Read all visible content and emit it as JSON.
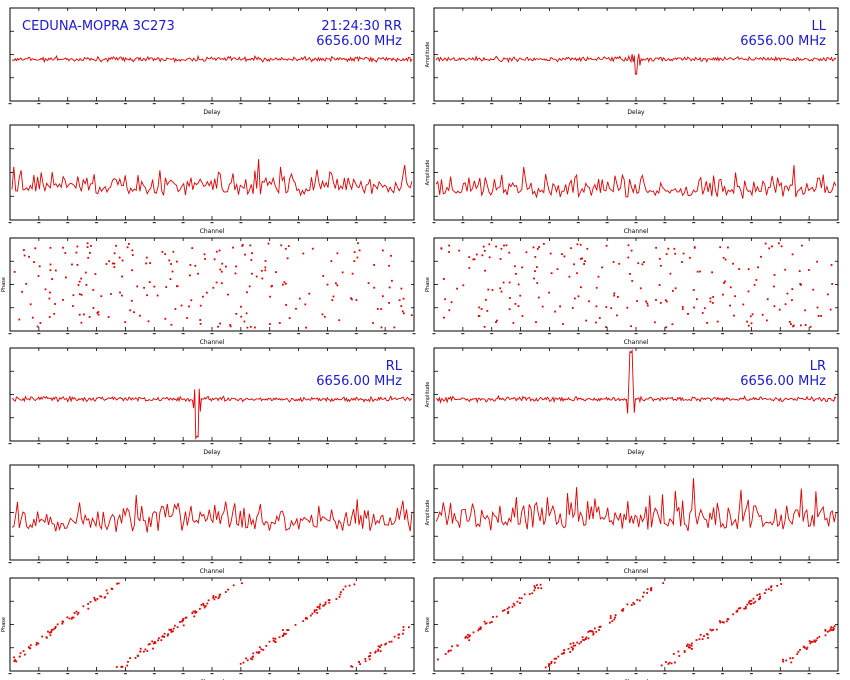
{
  "header": {
    "source": "CEDUNA-MOPRA 3C273",
    "time": "21:24:30",
    "frequency": "6656.00 MHz"
  },
  "axis_labels": {
    "delay": "Delay",
    "channel": "Channel",
    "amplitude": "Amplitude",
    "phase": "Phase"
  },
  "chart_data": [
    {
      "type": "line",
      "id": "RR-delay",
      "group": "RR",
      "pol": "RR",
      "panel": "delay",
      "xlabel": "Delay",
      "ylabel": "",
      "noise": 0.12,
      "spike_at": null,
      "spike_height": 0
    },
    {
      "type": "line",
      "id": "RR-amp",
      "group": "RR",
      "pol": "RR",
      "panel": "amplitude",
      "xlabel": "Channel",
      "ylabel": "",
      "baseline": 0.25,
      "spread": 0.3
    },
    {
      "type": "scatter",
      "id": "RR-phase",
      "group": "RR",
      "pol": "RR",
      "panel": "phase",
      "xlabel": "Channel",
      "ylabel": "Phase",
      "pattern": "random"
    },
    {
      "type": "line",
      "id": "LL-delay",
      "group": "LL",
      "pol": "LL",
      "panel": "delay",
      "xlabel": "Delay",
      "ylabel": "Amplitude",
      "noise": 0.12,
      "spike_at": 0,
      "spike_height": -0.35
    },
    {
      "type": "line",
      "id": "LL-amp",
      "group": "LL",
      "pol": "LL",
      "panel": "amplitude",
      "xlabel": "Channel",
      "ylabel": "Amplitude",
      "baseline": 0.22,
      "spread": 0.3
    },
    {
      "type": "scatter",
      "id": "LL-phase",
      "group": "LL",
      "pol": "LL",
      "panel": "phase",
      "xlabel": "Channel",
      "ylabel": "Phase",
      "pattern": "random"
    },
    {
      "type": "line",
      "id": "RL-delay",
      "group": "RL",
      "pol": "RL",
      "panel": "delay",
      "xlabel": "Delay",
      "ylabel": "",
      "noise": 0.12,
      "spike_at": -0.15,
      "spike_height": -1.0
    },
    {
      "type": "line",
      "id": "RL-amp",
      "group": "RL",
      "pol": "RL",
      "panel": "amplitude",
      "xlabel": "Channel",
      "ylabel": "",
      "baseline": 0.28,
      "spread": 0.4
    },
    {
      "type": "scatter",
      "id": "RL-phase",
      "group": "RL",
      "pol": "RL",
      "panel": "phase",
      "xlabel": "Channel",
      "ylabel": "Phase",
      "pattern": "wrap"
    },
    {
      "type": "line",
      "id": "LR-delay",
      "group": "LR",
      "pol": "LR",
      "panel": "delay",
      "xlabel": "Delay",
      "ylabel": "Amplitude",
      "noise": 0.12,
      "spike_at": -0.05,
      "spike_height": 1.2
    },
    {
      "type": "line",
      "id": "LR-amp",
      "group": "LR",
      "pol": "LR",
      "panel": "amplitude",
      "xlabel": "Channel",
      "ylabel": "Amplitude",
      "baseline": 0.3,
      "spread": 0.45
    },
    {
      "type": "scatter",
      "id": "LR-phase",
      "group": "LR",
      "pol": "LR",
      "panel": "phase",
      "xlabel": "Channel",
      "ylabel": "Phase",
      "pattern": "wrap"
    }
  ],
  "colors": {
    "trace": "#e00000",
    "frame": "#000000",
    "annotation": "#1a1ad0"
  }
}
